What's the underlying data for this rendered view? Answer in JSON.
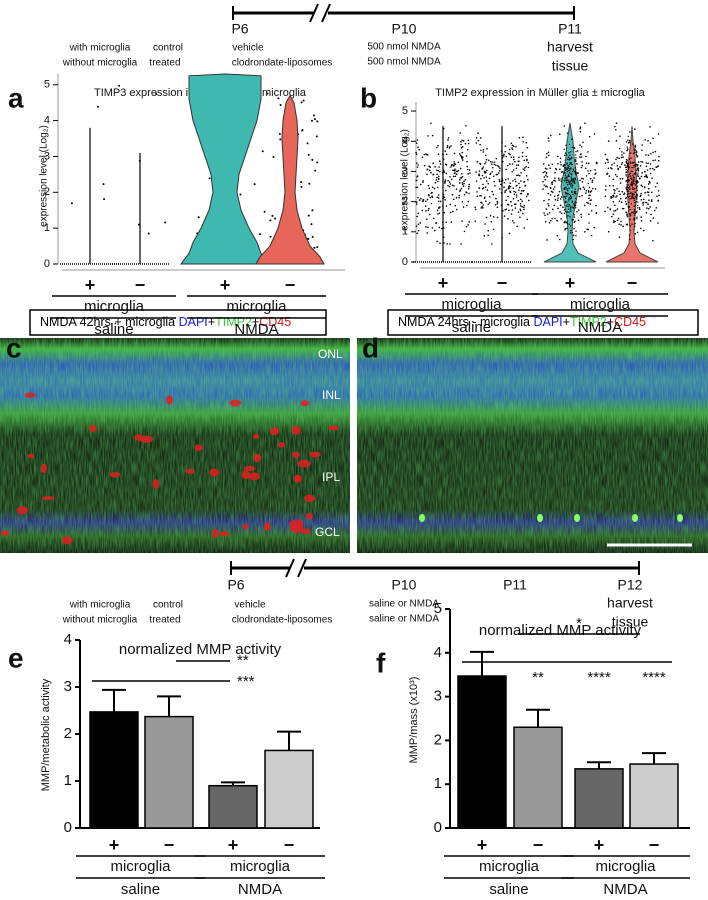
{
  "timeline_top": {
    "days": [
      "P6",
      "P10",
      "P11"
    ],
    "groups": [
      "with microglia",
      "without microglia"
    ],
    "control": [
      "control",
      "treated"
    ],
    "vehicle": [
      "vehicle",
      "clodrondate-liposomes"
    ],
    "treatment": [
      "500 nmol NMDA",
      "500 nmol NMDA"
    ],
    "harvest": [
      "harvest",
      "tissue"
    ]
  },
  "timeline_bottom": {
    "days": [
      "P6",
      "P10",
      "P11",
      "P12"
    ],
    "groups": [
      "with microglia",
      "without microglia"
    ],
    "control": [
      "control",
      "treated"
    ],
    "vehicle": [
      "vehicle",
      "clodrondate-liposomes"
    ],
    "treatment": [
      "saline or NMDA",
      "saline or NMDA"
    ],
    "harvest": [
      "harvest",
      "tissue"
    ]
  },
  "panel_c": {
    "letter": "c",
    "caption": [
      {
        "text": "NMDA 42hrs + microglia ",
        "color": "#000000"
      },
      {
        "text": "DAPI",
        "color": "#1a1adf"
      },
      {
        "text": "+",
        "color": "#000000"
      },
      {
        "text": "TIMP2",
        "color": "#3cc23c"
      },
      {
        "text": "+",
        "color": "#000000"
      },
      {
        "text": "CD45",
        "color": "#d01515"
      }
    ],
    "layers": [
      "ONL",
      "INL",
      "IPL",
      "GCL"
    ]
  },
  "panel_d": {
    "letter": "d",
    "caption": [
      {
        "text": "NMDA 24hrs - microglia ",
        "color": "#000000"
      },
      {
        "text": "DAPI",
        "color": "#1a1adf"
      },
      {
        "text": "+",
        "color": "#000000"
      },
      {
        "text": "TIMP2",
        "color": "#3cc23c"
      },
      {
        "text": "+",
        "color": "#000000"
      },
      {
        "text": "CD45",
        "color": "#d01515"
      }
    ]
  },
  "chart_data": [
    {
      "letter": "a",
      "type": "violin",
      "title": "TIMP3 expression in NIRG cells ± microglia",
      "y_label": "expression level (Log₂)",
      "categories": [
        "+",
        "−",
        "+",
        "−"
      ],
      "groups": [
        "microglia",
        "microglia"
      ],
      "treatments": [
        "saline",
        "NMDA"
      ],
      "colors": [
        "#000000",
        "#000000",
        "#3fb8b0",
        "#e8655a"
      ],
      "ylim": [
        0,
        5.3
      ],
      "yticks": [
        0,
        1,
        2,
        3,
        4,
        5
      ]
    },
    {
      "letter": "b",
      "type": "violin",
      "title": "TIMP2 expression in Müller glia ± microglia",
      "y_label": "expression level (Log₂)",
      "categories": [
        "+",
        "−",
        "+",
        "−"
      ],
      "groups": [
        "microglia",
        "microglia"
      ],
      "treatments": [
        "saline",
        "NMDA"
      ],
      "colors": [
        "#000000",
        "#000000",
        "#3fb8b0",
        "#e8655a"
      ],
      "ylim": [
        0,
        5.3
      ],
      "yticks": [
        0,
        1,
        2,
        3,
        4,
        5
      ]
    },
    {
      "letter": "e",
      "type": "bar",
      "title": "normalized MMP activity",
      "y_label": "MMP/metabolic activity",
      "categories": [
        "+",
        "−",
        "+",
        "−"
      ],
      "groups": [
        "microglia",
        "microglia"
      ],
      "treatments": [
        "saline",
        "NMDA"
      ],
      "values": [
        2.47,
        2.37,
        0.9,
        1.65
      ],
      "errors": [
        0.47,
        0.43,
        0.07,
        0.4
      ],
      "colors": [
        "#000000",
        "#999999",
        "#666666",
        "#cccccc"
      ],
      "ylim": [
        0,
        4
      ],
      "yticks": [
        0,
        1,
        2,
        3,
        4
      ],
      "significance": [
        "**",
        "***"
      ]
    },
    {
      "letter": "f",
      "type": "bar",
      "title": "normalized MMP activity",
      "y_label": "MMP/mass (x10³)",
      "categories": [
        "+",
        "−",
        "+",
        "−"
      ],
      "groups": [
        "microglia",
        "microglia"
      ],
      "treatments": [
        "saline",
        "NMDA"
      ],
      "values": [
        3.47,
        2.3,
        1.35,
        1.46
      ],
      "errors": [
        0.55,
        0.4,
        0.15,
        0.25
      ],
      "colors": [
        "#000000",
        "#999999",
        "#666666",
        "#cccccc"
      ],
      "ylim": [
        0,
        5
      ],
      "yticks": [
        0,
        1,
        2,
        3,
        4,
        5
      ],
      "significance": [
        "*",
        "**",
        "****",
        "****"
      ]
    }
  ]
}
